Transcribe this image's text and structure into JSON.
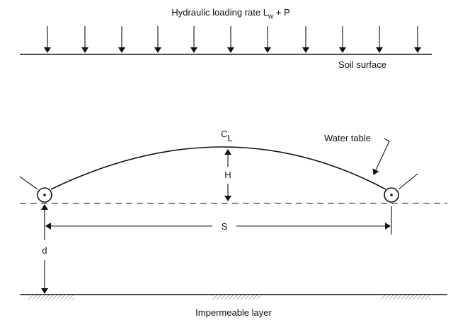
{
  "loading_label": {
    "text": "Hydraulic loading rate L",
    "subscript": "w",
    "suffix": " + P"
  },
  "soil_surface": "Soil surface",
  "centerline": {
    "text": "C",
    "subscript": "L"
  },
  "water_table": "Water table",
  "height": "H",
  "spacing": "S",
  "depth": "d",
  "impermeable_layer": "Impermeable layer"
}
